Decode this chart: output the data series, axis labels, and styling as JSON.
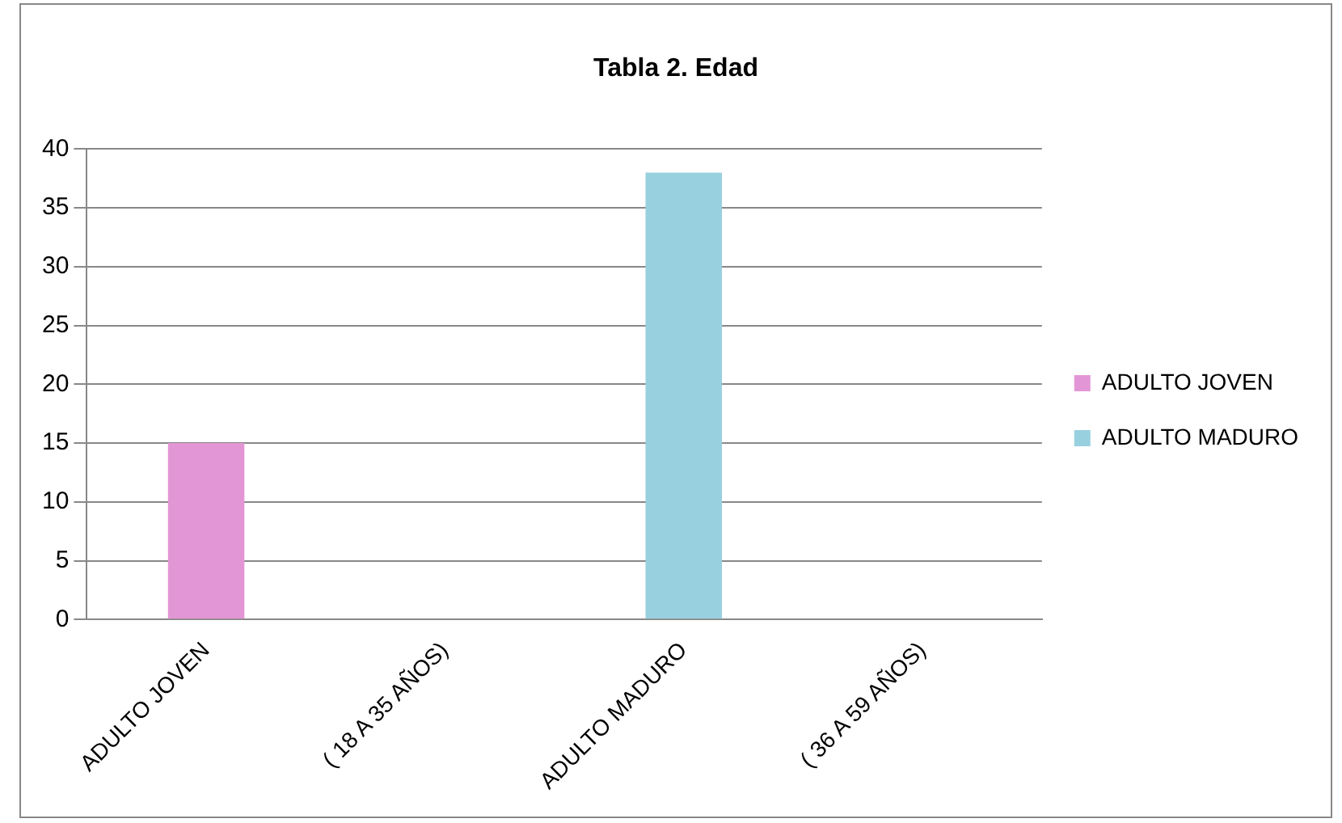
{
  "chart_data": {
    "type": "bar",
    "title": "Tabla 2. Edad",
    "categories": [
      "ADULTO JOVEN",
      "( 18 A 35 AÑOS)",
      "ADULTO MADURO",
      "( 36 A 59 AÑOS)"
    ],
    "series": [
      {
        "name": "ADULTO JOVEN",
        "color": "#e396d6",
        "values": [
          15,
          null,
          null,
          null
        ]
      },
      {
        "name": "ADULTO MADURO",
        "color": "#99d0df",
        "values": [
          null,
          null,
          38,
          null
        ]
      }
    ],
    "ylim": [
      0,
      40
    ],
    "yticks": [
      0,
      5,
      10,
      15,
      20,
      25,
      30,
      35,
      40
    ],
    "grid": "y",
    "legend": "right"
  }
}
